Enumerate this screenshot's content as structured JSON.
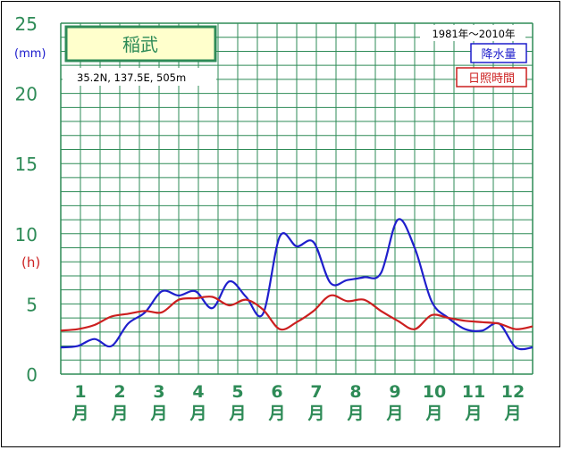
{
  "chart_data": {
    "type": "line",
    "title": "稲武",
    "location": "35.2N,  137.5E,  505m",
    "period": "1981年〜2010年",
    "unit_left": "(mm)",
    "unit_right": "(h)",
    "ylim": [
      0,
      25
    ],
    "yticks": [
      "0",
      "5",
      "10",
      "15",
      "20",
      "25"
    ],
    "x_labels": [
      {
        "num": "1",
        "unit": "月"
      },
      {
        "num": "2",
        "unit": "月"
      },
      {
        "num": "3",
        "unit": "月"
      },
      {
        "num": "4",
        "unit": "月"
      },
      {
        "num": "5",
        "unit": "月"
      },
      {
        "num": "6",
        "unit": "月"
      },
      {
        "num": "7",
        "unit": "月"
      },
      {
        "num": "8",
        "unit": "月"
      },
      {
        "num": "9",
        "unit": "月"
      },
      {
        "num": "10",
        "unit": "月"
      },
      {
        "num": "11",
        "unit": "月"
      },
      {
        "num": "12",
        "unit": "月"
      }
    ],
    "series": [
      {
        "name": "降水量",
        "color": "#1f1fcc",
        "values": [
          1.9,
          2.0,
          2.5,
          2.0,
          3.6,
          4.4,
          5.9,
          5.6,
          5.9,
          4.7,
          6.6,
          5.5,
          4.3,
          9.8,
          9.1,
          9.4,
          6.5,
          6.7,
          6.9,
          7.2,
          11.0,
          9.0,
          5.2,
          4.0,
          3.2,
          3.1,
          3.6,
          1.9,
          1.9
        ]
      },
      {
        "name": "日照時間",
        "color": "#cc1f1f",
        "values": [
          3.1,
          3.2,
          3.5,
          4.1,
          4.3,
          4.5,
          4.4,
          5.3,
          5.4,
          5.5,
          4.9,
          5.3,
          4.6,
          3.2,
          3.7,
          4.5,
          5.6,
          5.2,
          5.3,
          4.5,
          3.8,
          3.2,
          4.2,
          4.0,
          3.8,
          3.7,
          3.6,
          3.2,
          3.4
        ]
      }
    ]
  }
}
